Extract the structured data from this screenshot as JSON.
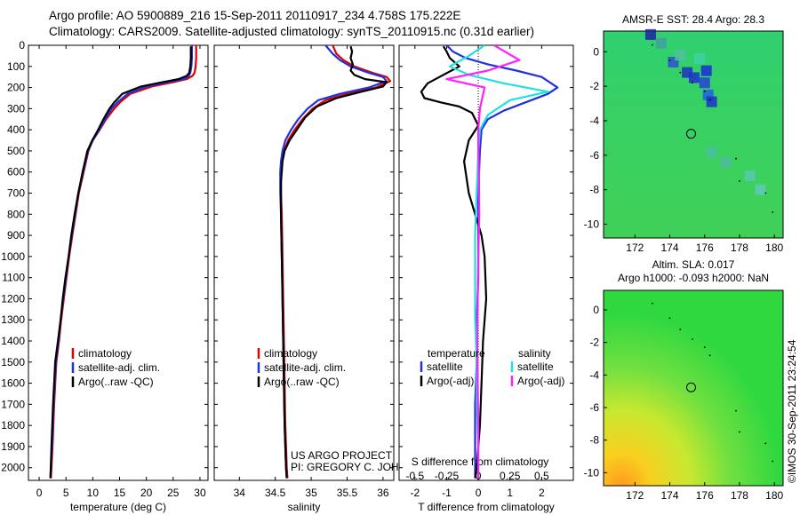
{
  "header": {
    "line1": "Argo profile: AO 5900889_216 15-Sep-2011 20110917_234 4.758S 175.222E",
    "line2": "Climatology: CARS2009. Satellite-adjusted climatology: synTS_20110915.nc (0.31d earlier)"
  },
  "colors": {
    "climatology": "#e00000",
    "satellite": "#2030e0",
    "argo": "#000000",
    "sat_salinity": "#20e0e0",
    "argo_salinity": "#ff20ff"
  },
  "chart_data": [
    {
      "type": "line",
      "id": "temperature",
      "xlabel": "temperature (deg C)",
      "ylabel": "",
      "xlim": [
        -2,
        31.5
      ],
      "ylim": [
        2060,
        0
      ],
      "xticks": [
        0,
        5,
        10,
        15,
        20,
        25,
        30
      ],
      "yticks": [
        0,
        100,
        200,
        300,
        400,
        500,
        600,
        700,
        800,
        900,
        1000,
        1100,
        1200,
        1300,
        1400,
        1500,
        1600,
        1700,
        1800,
        1900,
        2000
      ],
      "legend": [
        "climatology",
        "satellite-adj. clim.",
        "Argo(..raw -QC)"
      ],
      "series": [
        {
          "name": "climatology",
          "color": "#e00000",
          "x": [
            29.3,
            29.3,
            29.2,
            29.0,
            28.6,
            27.5,
            25,
            21,
            17,
            15.1,
            14,
            12.5,
            11.3,
            10,
            9.2,
            8.3,
            7.4,
            6.8,
            6.2,
            5.6,
            5.1,
            4.6,
            4.1,
            3.7,
            3.2,
            2.8,
            2.5,
            2.2
          ],
          "y": [
            0,
            60,
            100,
            130,
            145,
            160,
            175,
            195,
            230,
            270,
            300,
            350,
            400,
            450,
            500,
            600,
            700,
            800,
            900,
            1000,
            1100,
            1200,
            1300,
            1400,
            1500,
            1700,
            1900,
            2050
          ]
        },
        {
          "name": "satellite-adj. clim.",
          "color": "#2030e0",
          "x": [
            28.5,
            28.5,
            28.4,
            28.2,
            27.9,
            27,
            24,
            20,
            16.5,
            14.6,
            13.5,
            12.3,
            11.2,
            10,
            9.1,
            8.2,
            7.3,
            6.7,
            6.1,
            5.5,
            5.0,
            4.5,
            4.0,
            3.6,
            3.1,
            2.7,
            2.4,
            2.1
          ],
          "y": [
            0,
            60,
            100,
            130,
            145,
            160,
            175,
            195,
            230,
            270,
            300,
            350,
            400,
            450,
            500,
            600,
            700,
            800,
            900,
            1000,
            1100,
            1200,
            1300,
            1400,
            1500,
            1700,
            1900,
            2050
          ]
        },
        {
          "name": "Argo(..raw -QC)",
          "color": "#000000",
          "x": [
            28.3,
            28.3,
            28.2,
            28.0,
            27.5,
            26,
            23,
            19,
            15.5,
            14.0,
            13.1,
            12.0,
            11.0,
            9.9,
            9.0,
            8.1,
            7.3,
            6.6,
            6.0,
            5.5,
            4.9,
            4.4,
            4.0,
            3.5,
            3.0,
            2.6,
            2.3,
            2.1
          ],
          "y": [
            5,
            60,
            100,
            130,
            145,
            160,
            175,
            195,
            230,
            270,
            300,
            350,
            400,
            450,
            500,
            600,
            700,
            800,
            900,
            1000,
            1100,
            1200,
            1300,
            1400,
            1500,
            1700,
            1900,
            2050
          ]
        }
      ]
    },
    {
      "type": "line",
      "id": "salinity",
      "xlabel": "salinity",
      "ylabel": "",
      "xlim": [
        33.65,
        36.15
      ],
      "ylim": [
        2060,
        0
      ],
      "xticks": [
        34,
        34.5,
        35,
        35.5,
        36
      ],
      "legend": [
        "climatology",
        "satellite-adj. clim.",
        "Argo(..raw -QC)"
      ],
      "series": [
        {
          "name": "climatology",
          "color": "#e00000",
          "x": [
            35.3,
            35.35,
            35.45,
            35.6,
            35.85,
            36.05,
            36.1,
            35.9,
            35.5,
            35.2,
            35.02,
            34.88,
            34.77,
            34.68,
            34.62,
            34.59,
            34.58,
            34.58,
            34.59,
            34.6,
            34.61,
            34.62,
            34.63,
            34.64,
            34.65,
            34.66,
            34.67
          ],
          "y": [
            0,
            40,
            70,
            100,
            130,
            150,
            170,
            200,
            230,
            260,
            300,
            350,
            400,
            450,
            500,
            550,
            600,
            700,
            800,
            1000,
            1200,
            1400,
            1600,
            1800,
            1900,
            2000,
            2050
          ]
        },
        {
          "name": "satellite-adj. clim.",
          "color": "#2030e0",
          "x": [
            35.2,
            35.3,
            35.4,
            35.55,
            35.8,
            36.0,
            36.05,
            35.8,
            35.4,
            35.1,
            34.95,
            34.82,
            34.72,
            34.64,
            34.6,
            34.58,
            34.57,
            34.57,
            34.58,
            34.59,
            34.6,
            34.61,
            34.62,
            34.63,
            34.64,
            34.65,
            34.66
          ],
          "y": [
            0,
            40,
            70,
            100,
            130,
            150,
            170,
            200,
            230,
            260,
            300,
            350,
            400,
            450,
            500,
            550,
            600,
            700,
            800,
            1000,
            1200,
            1400,
            1600,
            1800,
            1900,
            2000,
            2050
          ]
        },
        {
          "name": "Argo(..raw -QC)",
          "color": "#000000",
          "x": [
            35.55,
            35.57,
            35.55,
            35.58,
            35.55,
            35.6,
            35.75,
            36.05,
            36.0,
            35.7,
            35.35,
            35.08,
            34.92,
            34.8,
            34.7,
            34.63,
            34.6,
            34.58,
            34.58,
            34.59,
            34.6,
            34.61,
            34.62,
            34.63,
            34.64,
            34.65,
            34.66
          ],
          "y": [
            5,
            30,
            60,
            90,
            120,
            140,
            160,
            175,
            195,
            220,
            250,
            290,
            340,
            400,
            450,
            500,
            550,
            650,
            800,
            1000,
            1200,
            1400,
            1600,
            1800,
            1900,
            2000,
            2050
          ]
        }
      ],
      "annotations": [
        "US ARGO PROJECT",
        "PI: GREGORY C. JOHNSON"
      ]
    },
    {
      "type": "line",
      "id": "difference",
      "xlabel": "T difference from climatology",
      "xlabel2": "S difference from climatology",
      "xlim": [
        -2.5,
        3.0
      ],
      "ylim": [
        2060,
        0
      ],
      "xticks": [
        -2,
        -1,
        0,
        1,
        2
      ],
      "xticks_s": [
        "-0.5",
        "-0.25",
        "0",
        "0.25",
        "0.5"
      ],
      "xticks_s_pos": [
        -2,
        -1,
        0,
        1,
        2
      ],
      "legend_title_t": "temperature",
      "legend_title_s": "salinity",
      "legend_t": [
        "satellite",
        "Argo(-adj)"
      ],
      "legend_s": [
        "satellite",
        "Argo(-adj)"
      ],
      "series": [
        {
          "name": "T satellite",
          "color": "#2030e0",
          "x": [
            -1,
            -0.8,
            -0.4,
            0.3,
            1.2,
            2.0,
            2.5,
            2.2,
            1.5,
            0.8,
            0.3,
            0.1,
            0.05,
            0,
            0,
            0,
            -0.05,
            -0.05,
            -0.1,
            -0.1,
            -0.1,
            -0.1
          ],
          "y": [
            0,
            30,
            60,
            90,
            120,
            150,
            200,
            230,
            270,
            310,
            350,
            400,
            500,
            700,
            900,
            1100,
            1300,
            1500,
            1700,
            1900,
            2000,
            2050
          ]
        },
        {
          "name": "T Argo(-adj)",
          "color": "#000000",
          "x": [
            -1.1,
            -1.0,
            -0.9,
            -0.6,
            -1.6,
            -1.8,
            -1.7,
            -1.2,
            -0.6,
            -0.2,
            0,
            -0.3,
            -0.45,
            -0.3,
            0.1,
            0.2,
            0.25,
            0.15,
            0.1,
            0.05,
            0,
            -0.05,
            -0.1
          ],
          "y": [
            5,
            30,
            60,
            100,
            180,
            220,
            250,
            270,
            290,
            320,
            380,
            450,
            550,
            700,
            900,
            1000,
            1200,
            1400,
            1600,
            1800,
            1900,
            2000,
            2050
          ]
        },
        {
          "name": "S satellite",
          "color": "#20e0e0",
          "x": [
            0.2,
            -0.3,
            -0.9,
            -0.3,
            0.8,
            2.2,
            1.0,
            0.3,
            0.05,
            0,
            -0.05,
            -0.1,
            -0.1,
            -0.1,
            -0.05,
            -0.05,
            0,
            0
          ],
          "y": [
            0,
            50,
            100,
            140,
            180,
            220,
            260,
            330,
            400,
            500,
            700,
            900,
            1100,
            1300,
            1500,
            1700,
            1900,
            2050
          ]
        },
        {
          "name": "S Argo(-adj)",
          "color": "#ff20ff",
          "x": [
            0.5,
            1.3,
            0.3,
            -1.0,
            0.2,
            0.05,
            0,
            0,
            0.02,
            0.03,
            0,
            -0.02,
            -0.03,
            -0.02,
            0,
            0
          ],
          "y": [
            0,
            70,
            120,
            160,
            200,
            300,
            400,
            500,
            600,
            800,
            1000,
            1200,
            1400,
            1600,
            1800,
            2050
          ]
        }
      ]
    }
  ],
  "maps": {
    "top": {
      "title": "AMSR-E SST: 28.4  Argo: 28.3",
      "xticks": [
        "172",
        "174",
        "176",
        "178",
        "180"
      ],
      "yticks": [
        "0",
        "-2",
        "-4",
        "-6",
        "-8",
        "-10"
      ],
      "lon": [
        170.2,
        180.5
      ],
      "lat": [
        -10.8,
        1.2
      ],
      "marker": {
        "lon": 175.222,
        "lat": -4.758
      }
    },
    "bottom": {
      "title1": "Altim. SLA: 0.017",
      "title2": "Argo h1000: -0.093  h2000: NaN",
      "xticks": [
        "172",
        "174",
        "176",
        "178",
        "180"
      ],
      "yticks": [
        "0",
        "-2",
        "-4",
        "-6",
        "-8",
        "-10"
      ],
      "lon": [
        170.2,
        180.5
      ],
      "lat": [
        -10.8,
        1.2
      ],
      "marker": {
        "lon": 175.222,
        "lat": -4.758
      }
    }
  },
  "footer": "©IMOS 30-Sep-2011 23:24:54"
}
